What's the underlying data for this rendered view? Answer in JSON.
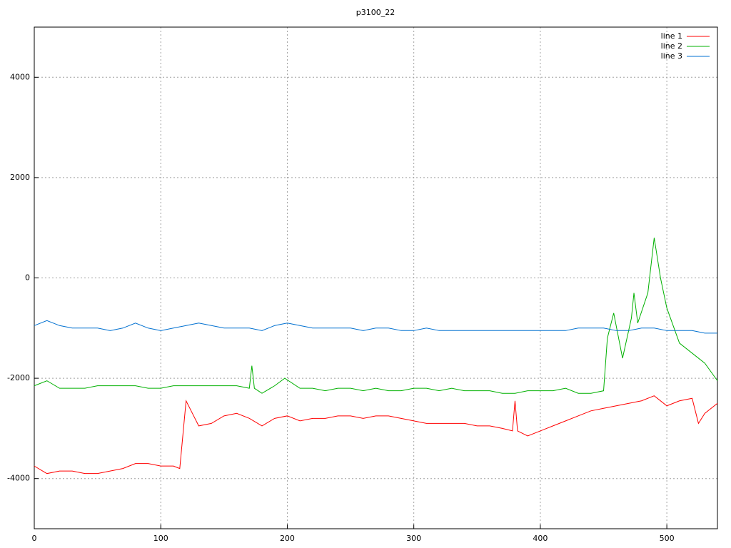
{
  "chart_data": {
    "type": "line",
    "title": "p3100_22",
    "xlim": [
      0,
      540
    ],
    "ylim": [
      -5000,
      5000
    ],
    "xticks": [
      0,
      100,
      200,
      300,
      400,
      500
    ],
    "yticks": [
      -4000,
      -2000,
      0,
      2000,
      4000
    ],
    "grid": true,
    "legend": "top-right",
    "series": [
      {
        "name": "line 1",
        "color": "#ff0000",
        "x": [
          0,
          10,
          20,
          30,
          40,
          50,
          60,
          70,
          80,
          90,
          100,
          110,
          115,
          120,
          125,
          130,
          140,
          150,
          160,
          170,
          180,
          190,
          200,
          210,
          220,
          230,
          240,
          250,
          260,
          270,
          280,
          290,
          300,
          310,
          320,
          330,
          340,
          350,
          360,
          370,
          378,
          380,
          382,
          390,
          400,
          410,
          420,
          430,
          440,
          450,
          460,
          470,
          480,
          490,
          500,
          510,
          520,
          525,
          530,
          540
        ],
        "values": [
          -3750,
          -3900,
          -3850,
          -3850,
          -3900,
          -3900,
          -3850,
          -3800,
          -3700,
          -3700,
          -3750,
          -3750,
          -3800,
          -2450,
          -2700,
          -2950,
          -2900,
          -2750,
          -2700,
          -2800,
          -2950,
          -2800,
          -2750,
          -2850,
          -2800,
          -2800,
          -2750,
          -2750,
          -2800,
          -2750,
          -2750,
          -2800,
          -2850,
          -2900,
          -2900,
          -2900,
          -2900,
          -2950,
          -2950,
          -3000,
          -3050,
          -2450,
          -3050,
          -3150,
          -3050,
          -2950,
          -2850,
          -2750,
          -2650,
          -2600,
          -2550,
          -2500,
          -2450,
          -2350,
          -2550,
          -2450,
          -2400,
          -2900,
          -2700,
          -2500
        ]
      },
      {
        "name": "line 2",
        "color": "#00b000",
        "x": [
          0,
          10,
          20,
          30,
          40,
          50,
          60,
          70,
          80,
          90,
          100,
          110,
          120,
          130,
          140,
          150,
          160,
          170,
          172,
          174,
          180,
          190,
          198,
          210,
          220,
          230,
          240,
          250,
          260,
          270,
          280,
          290,
          300,
          310,
          320,
          330,
          340,
          350,
          360,
          370,
          380,
          390,
          400,
          410,
          420,
          430,
          440,
          450,
          453,
          458,
          465,
          472,
          474,
          477,
          485,
          490,
          495,
          500,
          510,
          520,
          530,
          540
        ],
        "values": [
          -2150,
          -2050,
          -2200,
          -2200,
          -2200,
          -2150,
          -2150,
          -2150,
          -2150,
          -2200,
          -2200,
          -2150,
          -2150,
          -2150,
          -2150,
          -2150,
          -2150,
          -2200,
          -1750,
          -2200,
          -2300,
          -2150,
          -2000,
          -2200,
          -2200,
          -2250,
          -2200,
          -2200,
          -2250,
          -2200,
          -2250,
          -2250,
          -2200,
          -2200,
          -2250,
          -2200,
          -2250,
          -2250,
          -2250,
          -2300,
          -2300,
          -2250,
          -2250,
          -2250,
          -2200,
          -2300,
          -2300,
          -2250,
          -1200,
          -700,
          -1600,
          -800,
          -300,
          -900,
          -300,
          800,
          0,
          -600,
          -1300,
          -1500,
          -1700,
          -2050
        ]
      },
      {
        "name": "line 3",
        "color": "#0070d0",
        "x": [
          0,
          10,
          20,
          30,
          40,
          50,
          60,
          70,
          80,
          90,
          100,
          110,
          120,
          130,
          140,
          150,
          160,
          170,
          180,
          190,
          200,
          210,
          220,
          230,
          240,
          250,
          260,
          270,
          280,
          290,
          300,
          310,
          320,
          330,
          340,
          350,
          360,
          370,
          380,
          390,
          400,
          410,
          420,
          430,
          440,
          450,
          460,
          470,
          480,
          490,
          500,
          510,
          520,
          530,
          540
        ],
        "values": [
          -950,
          -850,
          -950,
          -1000,
          -1000,
          -1000,
          -1050,
          -1000,
          -900,
          -1000,
          -1050,
          -1000,
          -950,
          -900,
          -950,
          -1000,
          -1000,
          -1000,
          -1050,
          -950,
          -900,
          -950,
          -1000,
          -1000,
          -1000,
          -1000,
          -1050,
          -1000,
          -1000,
          -1050,
          -1050,
          -1000,
          -1050,
          -1050,
          -1050,
          -1050,
          -1050,
          -1050,
          -1050,
          -1050,
          -1050,
          -1050,
          -1050,
          -1000,
          -1000,
          -1000,
          -1050,
          -1050,
          -1000,
          -1000,
          -1050,
          -1050,
          -1050,
          -1100,
          -1100
        ]
      }
    ]
  }
}
